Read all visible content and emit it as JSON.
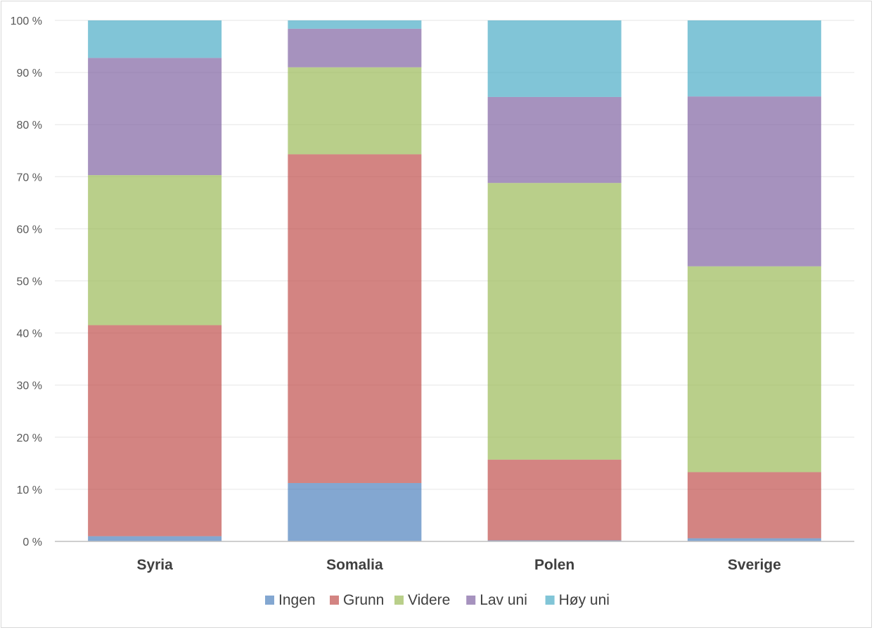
{
  "chart_data": {
    "type": "bar",
    "stacked": true,
    "percent_stacked": true,
    "title": "",
    "xlabel": "",
    "ylabel": "",
    "ylim": [
      0,
      100
    ],
    "yticks": [
      "0 %",
      "10 %",
      "20 %",
      "30 %",
      "40 %",
      "50 %",
      "60 %",
      "70 %",
      "80 %",
      "90 %",
      "100 %"
    ],
    "grid": true,
    "legend_position": "bottom",
    "categories": [
      "Syria",
      "Somalia",
      "Polen",
      "Sverige"
    ],
    "series": [
      {
        "name": "Ingen",
        "color": "#4f81bd",
        "values": [
          1.0,
          11.2,
          0.2,
          0.6
        ]
      },
      {
        "name": "Grunn",
        "color": "#c0504d",
        "values": [
          40.5,
          63.1,
          15.5,
          12.7
        ]
      },
      {
        "name": "Videre",
        "color": "#9bbb59",
        "values": [
          28.8,
          16.7,
          53.1,
          39.5
        ]
      },
      {
        "name": "Lav uni",
        "color": "#8064a2",
        "values": [
          22.5,
          7.4,
          16.5,
          32.6
        ]
      },
      {
        "name": "Høy uni",
        "color": "#4bacc6",
        "values": [
          7.2,
          1.6,
          14.7,
          14.6
        ]
      }
    ]
  }
}
